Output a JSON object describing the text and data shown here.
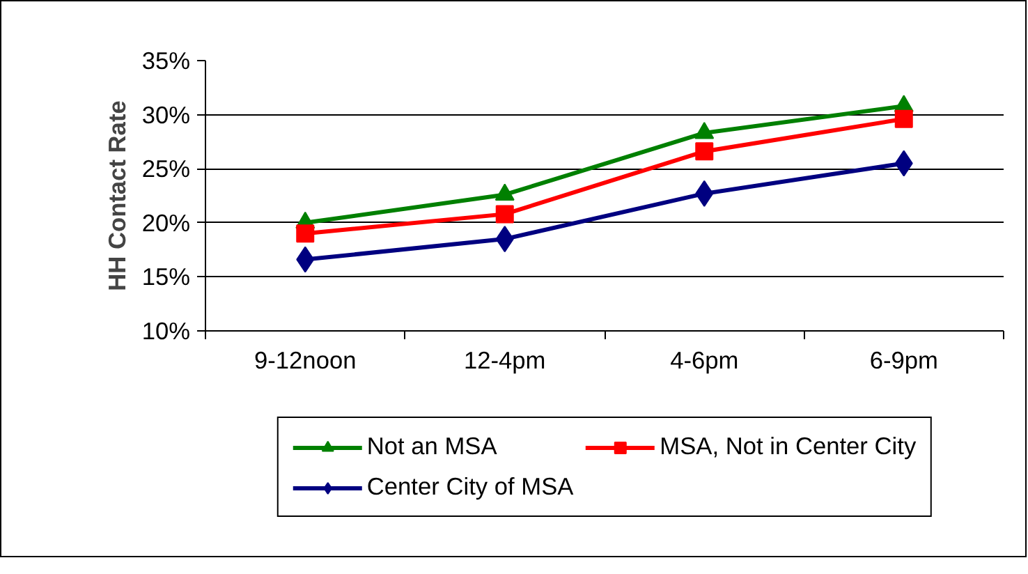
{
  "chart_data": {
    "type": "line",
    "ylabel": "HH Contact Rate",
    "categories": [
      "9-12noon",
      "12-4pm",
      "4-6pm",
      "6-9pm"
    ],
    "ylim": [
      10,
      35
    ],
    "yticks": [
      {
        "value": 10,
        "label": "10%"
      },
      {
        "value": 15,
        "label": "15%"
      },
      {
        "value": 20,
        "label": "20%"
      },
      {
        "value": 25,
        "label": "25%"
      },
      {
        "value": 30,
        "label": "30%"
      },
      {
        "value": 35,
        "label": "35%"
      }
    ],
    "grid": "y",
    "legend": "bottom",
    "line_style": "solid",
    "series": [
      {
        "name": "Not an MSA",
        "color": "#008000",
        "marker": "triangle",
        "values": [
          20.0,
          22.6,
          28.3,
          30.8
        ]
      },
      {
        "name": "MSA, Not in Center City",
        "color": "#ff0000",
        "marker": "square",
        "values": [
          19.0,
          20.8,
          26.6,
          29.6
        ]
      },
      {
        "name": "Center City of MSA",
        "color": "#000080",
        "marker": "diamond",
        "values": [
          16.6,
          18.5,
          22.7,
          25.5
        ]
      }
    ]
  }
}
